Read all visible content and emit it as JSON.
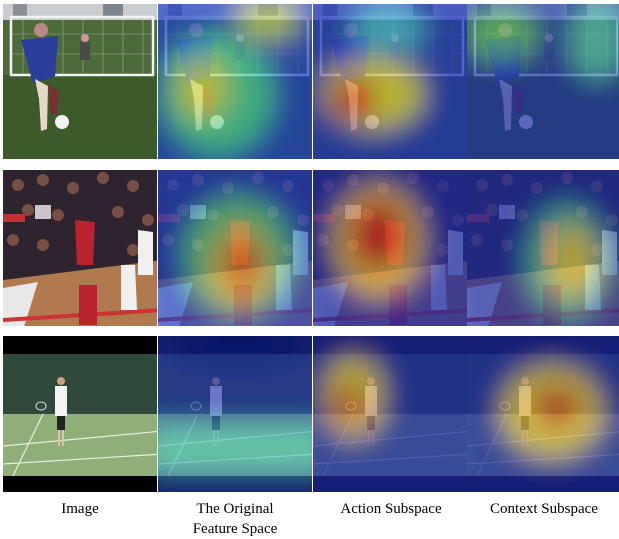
{
  "columns": [
    "Image",
    "The Original Feature Space",
    "Action Subspace",
    "Context Subspace"
  ]
}
